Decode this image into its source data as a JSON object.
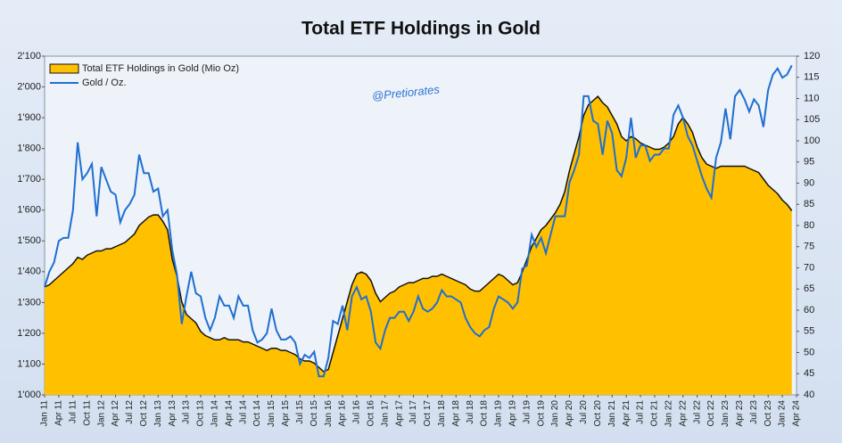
{
  "chart_data": {
    "type": "area_line",
    "title": "Total ETF Holdings in Gold",
    "annotation": "@Pretiorates",
    "categories": [
      "Jan 11",
      null,
      null,
      "Apr 11",
      null,
      null,
      "Jul 11",
      null,
      null,
      "Oct 11",
      null,
      null,
      "Jan 12",
      null,
      null,
      "Apr 12",
      null,
      null,
      "Jul 12",
      null,
      null,
      "Oct 12",
      null,
      null,
      "Jan 13",
      null,
      null,
      "Apr 13",
      null,
      null,
      "Jul 13",
      null,
      null,
      "Oct 13",
      null,
      null,
      "Jan 14",
      null,
      null,
      "Apr 14",
      null,
      null,
      "Jul 14",
      null,
      null,
      "Oct 14",
      null,
      null,
      "Jan 15",
      null,
      null,
      "Apr 15",
      null,
      null,
      "Jul 15",
      null,
      null,
      "Oct 15",
      null,
      null,
      "Jan 16",
      null,
      null,
      "Apr 16",
      null,
      null,
      "Jul 16",
      null,
      null,
      "Oct 16",
      null,
      null,
      "Jan 17",
      null,
      null,
      "Apr 17",
      null,
      null,
      "Jul 17",
      null,
      null,
      "Oct 17",
      null,
      null,
      "Jan 18",
      null,
      null,
      "Apr 18",
      null,
      null,
      "Jul 18",
      null,
      null,
      "Oct 18",
      null,
      null,
      "Jan 19",
      null,
      null,
      "Apr 19",
      null,
      null,
      "Jul 19",
      null,
      null,
      "Oct 19",
      null,
      null,
      "Jan 20",
      null,
      null,
      "Apr 20",
      null,
      null,
      "Jul 20",
      null,
      null,
      "Oct 20",
      null,
      null,
      "Jan 21",
      null,
      null,
      "Apr 21",
      null,
      null,
      "Jul 21",
      null,
      null,
      "Oct 21",
      null,
      null,
      "Jan 22",
      null,
      null,
      "Apr 22",
      null,
      null,
      "Jul 22",
      null,
      null,
      "Oct 22",
      null,
      null,
      "Jan 23",
      null,
      null,
      "Apr 23",
      null,
      null,
      "Jul 23",
      null,
      null,
      "Oct 23",
      null,
      null,
      "Jan 24",
      null,
      null,
      "Apr 24"
    ],
    "series": [
      {
        "name": "Total ETF Holdings in Gold (Mio Oz)",
        "color": "#ffc000",
        "axis": "y2",
        "values": [
          65.5,
          66,
          67,
          68,
          69,
          70,
          71,
          72.5,
          72,
          73,
          73.5,
          74,
          74,
          74.5,
          74.5,
          75,
          75.5,
          76,
          77,
          78,
          80,
          81,
          82,
          82.5,
          82.5,
          81,
          79,
          72,
          68,
          62,
          59,
          58,
          57,
          55,
          54,
          53.5,
          53,
          53,
          53.5,
          53,
          53,
          53,
          52.5,
          52.5,
          52,
          51.5,
          51,
          50.5,
          51,
          51,
          50.5,
          50.5,
          50,
          49.5,
          48.5,
          48,
          48,
          47.5,
          46.5,
          45.5,
          46,
          50,
          54,
          58,
          62,
          66,
          68.5,
          69,
          68.5,
          67,
          64,
          62,
          63,
          64,
          64.5,
          65.5,
          66,
          66.5,
          66.5,
          67,
          67.5,
          67.5,
          68,
          68,
          68.5,
          68,
          67.5,
          67,
          66.5,
          66,
          65,
          64.5,
          64.5,
          65.5,
          66.5,
          67.5,
          68.5,
          68,
          67,
          66,
          66.5,
          69,
          72,
          75,
          77,
          79,
          80,
          81.5,
          83,
          85,
          88,
          93,
          97,
          101,
          106,
          108.5,
          109.5,
          110.5,
          109,
          108,
          106,
          104,
          101,
          100,
          101,
          100.5,
          99.5,
          99,
          98.5,
          98,
          98,
          98.5,
          99.5,
          101,
          104,
          105.5,
          104,
          102,
          98.5,
          96,
          94.5,
          94,
          93.5,
          94,
          94,
          94,
          94,
          94,
          94,
          93.5,
          93,
          92.5,
          91,
          89.5,
          88.5,
          87.5,
          86,
          85,
          83.5,
          null
        ]
      },
      {
        "name": "Gold / Oz.",
        "color": "#1f6fd1",
        "values": [
          1350,
          1400,
          1430,
          1500,
          1510,
          1510,
          1600,
          1820,
          1700,
          1720,
          1750,
          1580,
          1740,
          1700,
          1660,
          1650,
          1560,
          1600,
          1620,
          1650,
          1780,
          1720,
          1720,
          1660,
          1670,
          1580,
          1600,
          1470,
          1390,
          1230,
          1320,
          1400,
          1330,
          1320,
          1250,
          1210,
          1250,
          1320,
          1290,
          1290,
          1250,
          1320,
          1290,
          1290,
          1210,
          1170,
          1180,
          1200,
          1280,
          1210,
          1180,
          1180,
          1190,
          1170,
          1100,
          1130,
          1120,
          1140,
          1060,
          1060,
          1120,
          1240,
          1230,
          1290,
          1210,
          1320,
          1350,
          1310,
          1320,
          1270,
          1170,
          1150,
          1210,
          1250,
          1250,
          1270,
          1270,
          1240,
          1270,
          1320,
          1280,
          1270,
          1280,
          1300,
          1340,
          1320,
          1320,
          1310,
          1300,
          1250,
          1220,
          1200,
          1190,
          1210,
          1220,
          1280,
          1320,
          1310,
          1300,
          1280,
          1300,
          1410,
          1420,
          1520,
          1480,
          1510,
          1460,
          1520,
          1580,
          1580,
          1580,
          1690,
          1730,
          1780,
          1970,
          1970,
          1890,
          1880,
          1780,
          1890,
          1850,
          1730,
          1710,
          1770,
          1900,
          1770,
          1810,
          1810,
          1760,
          1780,
          1780,
          1800,
          1800,
          1910,
          1940,
          1900,
          1840,
          1810,
          1760,
          1710,
          1670,
          1640,
          1770,
          1820,
          1930,
          1830,
          1970,
          1990,
          1960,
          1920,
          1960,
          1940,
          1870,
          1990,
          2040,
          2060,
          2030,
          2040,
          2070,
          null
        ]
      }
    ],
    "ylim": [
      1000,
      2100
    ],
    "yticks": [
      {
        "value": 1000,
        "label": "1'000"
      },
      {
        "value": 1100,
        "label": "1'100"
      },
      {
        "value": 1200,
        "label": "1'200"
      },
      {
        "value": 1300,
        "label": "1'300"
      },
      {
        "value": 1400,
        "label": "1'400"
      },
      {
        "value": 1500,
        "label": "1'500"
      },
      {
        "value": 1600,
        "label": "1'600"
      },
      {
        "value": 1700,
        "label": "1'700"
      },
      {
        "value": 1800,
        "label": "1'800"
      },
      {
        "value": 1900,
        "label": "1'900"
      },
      {
        "value": 2000,
        "label": "2'000"
      },
      {
        "value": 2100,
        "label": "2'100"
      }
    ],
    "y2lim": [
      40,
      120
    ],
    "y2ticks": [
      40,
      45,
      50,
      55,
      60,
      65,
      70,
      75,
      80,
      85,
      90,
      95,
      100,
      105,
      110,
      115,
      120
    ],
    "grid": false,
    "legend": "top-left"
  }
}
